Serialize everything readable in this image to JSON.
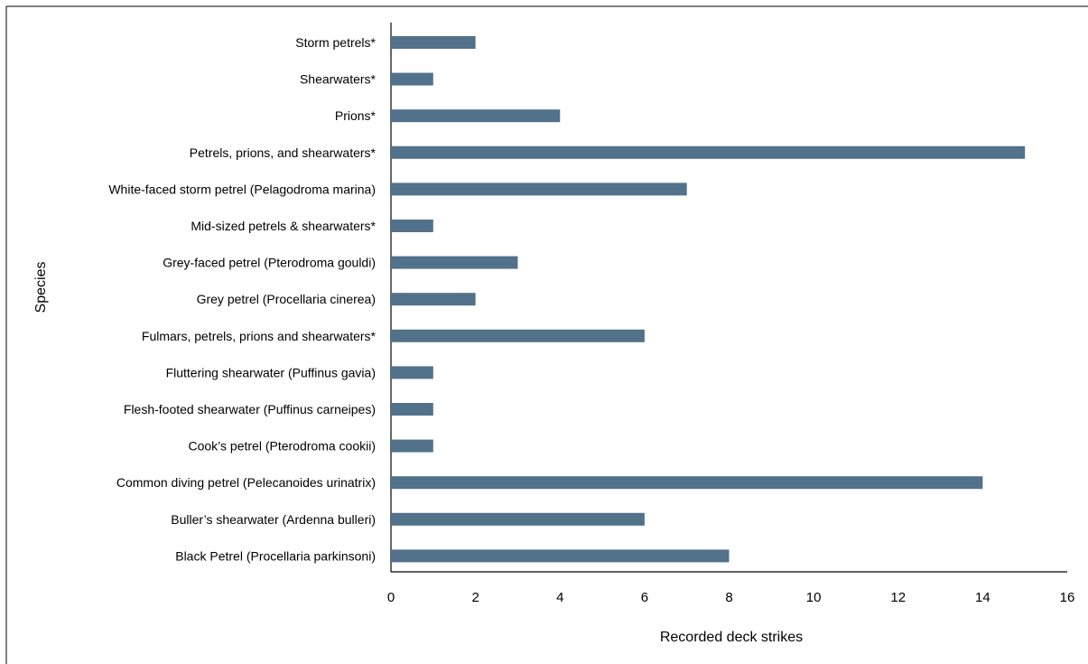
{
  "chart_data": {
    "type": "bar",
    "orientation": "horizontal",
    "title": "",
    "xlabel": "Recorded deck strikes",
    "ylabel": "Species",
    "xlim": [
      0,
      16
    ],
    "xticks": [
      0,
      2,
      4,
      6,
      8,
      10,
      12,
      14,
      16
    ],
    "grid": false,
    "legend": "none",
    "bar_color": "#52718A",
    "categories": [
      "Storm petrels*",
      "Shearwaters*",
      "Prions*",
      "Petrels, prions, and shearwaters*",
      "White-faced storm petrel (Pelagodroma marina)",
      "Mid-sized petrels & shearwaters*",
      "Grey-faced petrel (Pterodroma gouldi)",
      "Grey petrel (Procellaria cinerea)",
      "Fulmars, petrels, prions and shearwaters*",
      "Fluttering shearwater (Puffinus gavia)",
      "Flesh-footed shearwater (Puffinus carneipes)",
      "Cook’s petrel (Pterodroma cookii)",
      "Common diving petrel (Pelecanoides urinatrix)",
      "Buller’s shearwater (Ardenna bulleri)",
      "Black Petrel (Procellaria parkinsoni)"
    ],
    "values": [
      2,
      1,
      4,
      15,
      7,
      1,
      3,
      2,
      6,
      1,
      1,
      1,
      14,
      6,
      8
    ]
  }
}
